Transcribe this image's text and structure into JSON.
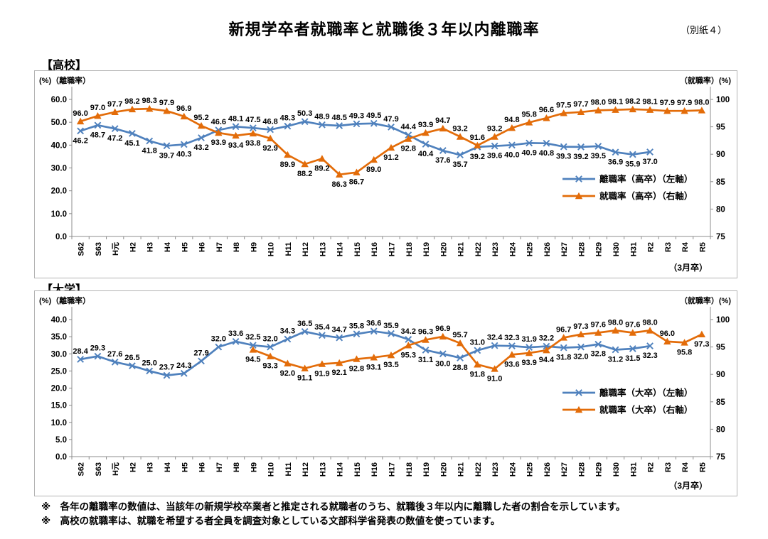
{
  "page": {
    "title": "新規学卒者就職率と就職後３年以内離職率",
    "ref_label": "（別紙４）",
    "notes": [
      "※　各年の離職率の数値は、当該年の新規学校卒業者と推定される就職者のうち、就職後３年以内に離職した者の割合を示しています。",
      "※　高校の就職率は、就職を希望する者全員を調査対象としている文部科学省発表の数値を使っています。"
    ]
  },
  "chart_data": [
    {
      "type": "line",
      "panel_title": "【高校】",
      "corner_left": "(%)（離職率）",
      "corner_right": "（就職率）(%)",
      "x_note": "（3月卒）",
      "left_axis": {
        "min": 0,
        "max": 60,
        "step": 10,
        "decimals": 1
      },
      "right_axis": {
        "min": 75,
        "max": 100,
        "step": 5,
        "decimals": 0
      },
      "grid": false,
      "legend_position": {
        "x": 742,
        "y": 152,
        "dy": 24
      },
      "categories": [
        "S62",
        "S63",
        "H元",
        "H2",
        "H3",
        "H4",
        "H5",
        "H6",
        "H7",
        "H8",
        "H9",
        "H10",
        "H11",
        "H12",
        "H13",
        "H14",
        "H15",
        "H16",
        "H17",
        "H18",
        "H19",
        "H20",
        "H21",
        "H22",
        "H23",
        "H24",
        "H25",
        "H26",
        "H27",
        "H28",
        "H29",
        "H30",
        "H31",
        "R2",
        "R3",
        "R4",
        "R5"
      ],
      "series": [
        {
          "name": "離職率（高卒）（左軸）",
          "axis": "left",
          "color": "#4F81BD",
          "marker": "x",
          "start_index": 0,
          "values": [
            46.2,
            48.7,
            47.2,
            45.1,
            41.8,
            39.7,
            40.3,
            43.2,
            46.6,
            48.1,
            47.5,
            46.8,
            48.3,
            50.3,
            48.9,
            48.5,
            49.3,
            49.5,
            47.9,
            44.4,
            40.4,
            37.6,
            35.7,
            39.2,
            39.6,
            40.0,
            40.9,
            40.8,
            39.3,
            39.2,
            39.5,
            36.9,
            35.9,
            37.0
          ],
          "label_side": [
            "b",
            "b",
            "b",
            "b",
            "b",
            "b",
            "b",
            "b",
            "a",
            "a",
            "a",
            "a",
            "a",
            "a",
            "a",
            "a",
            "a",
            "a",
            "a",
            "a",
            "b",
            "b",
            "b",
            "b",
            "b",
            "b",
            "b",
            "b",
            "b",
            "b",
            "b",
            "b",
            "b",
            "b"
          ]
        },
        {
          "name": "就職率（高卒）（右軸）",
          "axis": "right",
          "color": "#E36C09",
          "marker": "triangle",
          "start_index": 0,
          "values": [
            96.0,
            97.0,
            97.7,
            98.2,
            98.3,
            97.9,
            96.9,
            95.2,
            93.9,
            93.4,
            93.8,
            92.9,
            89.9,
            88.2,
            89.2,
            86.3,
            86.7,
            89.0,
            91.2,
            92.8,
            93.9,
            94.7,
            93.2,
            91.6,
            93.2,
            94.8,
            95.8,
            96.6,
            97.5,
            97.7,
            98.0,
            98.1,
            98.2,
            98.1,
            97.9,
            97.9,
            98.0
          ],
          "label_side": [
            "a",
            "a",
            "a",
            "a",
            "a",
            "a",
            "a",
            "a",
            "b",
            "b",
            "b",
            "b",
            "b",
            "b",
            "b",
            "b",
            "b",
            "b",
            "b",
            "b",
            "a",
            "a",
            "a",
            "a",
            "a",
            "a",
            "a",
            "a",
            "a",
            "a",
            "a",
            "a",
            "a",
            "a",
            "a",
            "a",
            "a"
          ]
        }
      ]
    },
    {
      "type": "line",
      "panel_title": "【大学】",
      "corner_left": "(%)（離職率）",
      "corner_right": "（就職率）(%)",
      "x_note": "（3月卒）",
      "left_axis": {
        "min": 0,
        "max": 40,
        "step": 5,
        "decimals": 1
      },
      "right_axis": {
        "min": 75,
        "max": 100,
        "step": 5,
        "decimals": 0
      },
      "grid": false,
      "legend_position": {
        "x": 742,
        "y": 143,
        "dy": 24
      },
      "categories": [
        "S62",
        "S63",
        "H元",
        "H2",
        "H3",
        "H4",
        "H5",
        "H6",
        "H7",
        "H8",
        "H9",
        "H10",
        "H11",
        "H12",
        "H13",
        "H14",
        "H15",
        "H16",
        "H17",
        "H18",
        "H19",
        "H20",
        "H21",
        "H22",
        "H23",
        "H24",
        "H25",
        "H26",
        "H27",
        "H28",
        "H29",
        "H30",
        "H31",
        "R2",
        "R3",
        "R4",
        "R5"
      ],
      "series": [
        {
          "name": "離職率（大卒）（左軸）",
          "axis": "left",
          "color": "#4F81BD",
          "marker": "x",
          "start_index": 0,
          "values": [
            28.4,
            29.3,
            27.6,
            26.5,
            25.0,
            23.7,
            24.3,
            27.9,
            32.0,
            33.6,
            32.5,
            32.0,
            34.3,
            36.5,
            35.4,
            34.7,
            35.8,
            36.6,
            35.9,
            34.2,
            31.1,
            30.0,
            28.8,
            31.0,
            32.4,
            32.3,
            31.9,
            32.2,
            31.8,
            32.0,
            32.8,
            31.2,
            31.5,
            32.3
          ],
          "label_side": [
            "a",
            "a",
            "a",
            "a",
            "a",
            "a",
            "a",
            "a",
            "a",
            "a",
            "a",
            "a",
            "a",
            "a",
            "a",
            "a",
            "a",
            "a",
            "a",
            "a",
            "b",
            "b",
            "b",
            "a",
            "a",
            "a",
            "a",
            "a",
            "b",
            "b",
            "b",
            "b",
            "b",
            "b"
          ]
        },
        {
          "name": "就職率（大卒）（右軸）",
          "axis": "right",
          "color": "#E36C09",
          "marker": "triangle",
          "start_index": 10,
          "values": [
            94.5,
            93.3,
            92.0,
            91.1,
            91.9,
            92.1,
            92.8,
            93.1,
            93.5,
            95.3,
            96.3,
            96.9,
            95.7,
            91.8,
            91.0,
            93.6,
            93.9,
            94.4,
            96.7,
            97.3,
            97.6,
            98.0,
            97.6,
            98.0,
            96.0,
            95.8,
            97.3
          ],
          "label_side": [
            "b",
            "b",
            "b",
            "b",
            "b",
            "b",
            "b",
            "b",
            "b",
            "b",
            "a",
            "a",
            "a",
            "b",
            "b",
            "b",
            "b",
            "b",
            "a",
            "a",
            "a",
            "a",
            "a",
            "a",
            "a",
            "b",
            "b"
          ]
        }
      ]
    }
  ]
}
